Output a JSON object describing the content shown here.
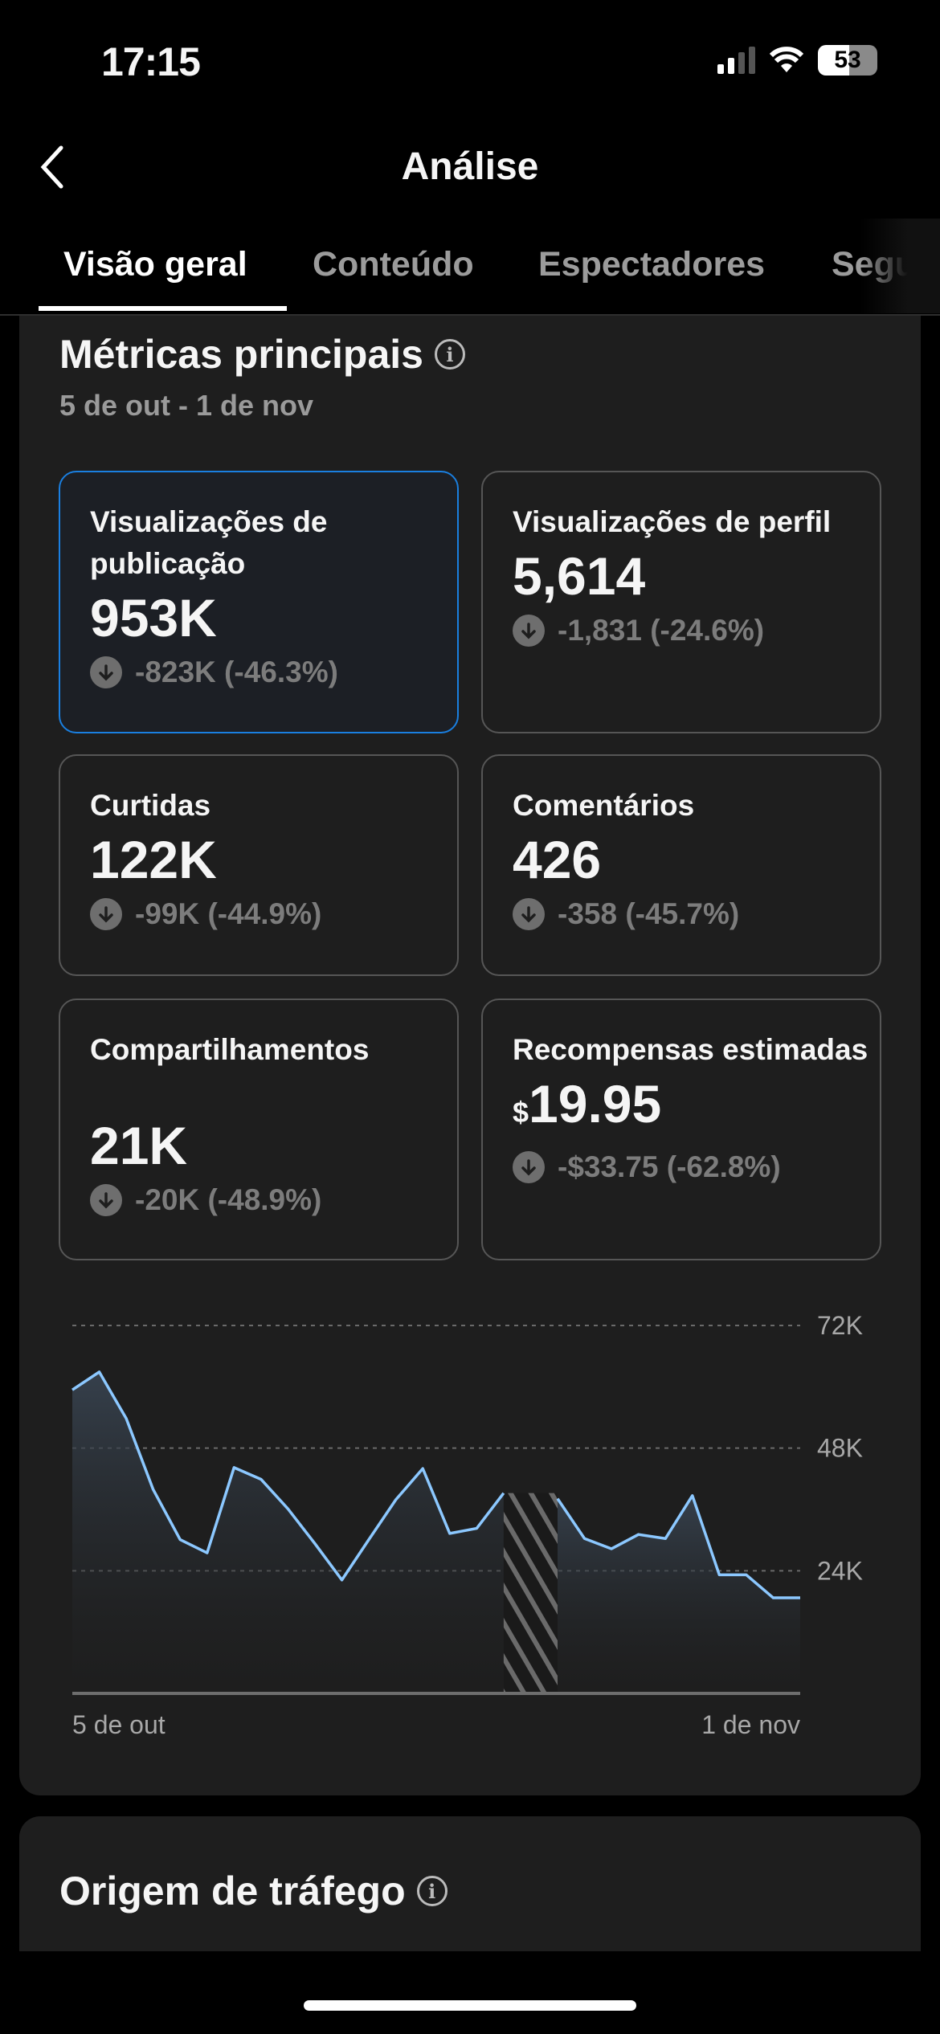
{
  "status_bar": {
    "time": "17:15",
    "battery": "53"
  },
  "header": {
    "title": "Análise",
    "back_icon": "chevron-left-icon"
  },
  "tabs": [
    {
      "label": "Visão geral",
      "active": true
    },
    {
      "label": "Conteúdo"
    },
    {
      "label": "Espectadores"
    },
    {
      "label": "Seguidores"
    }
  ],
  "metrics": {
    "title": "Métricas principais",
    "date_range": "5 de out - 1 de nov",
    "cards": [
      {
        "label": "Visualizações de publicação",
        "value": "953K",
        "change": "-823K (-46.3%)",
        "selected": true
      },
      {
        "label": "Visualizações de perfil",
        "value": "5,614",
        "change": "-1,831 (-24.6%)"
      },
      {
        "label": "Curtidas",
        "value": "122K",
        "change": "-99K (-44.9%)"
      },
      {
        "label": "Comentários",
        "value": "426",
        "change": "-358 (-45.7%)"
      },
      {
        "label": "Compartilhamentos",
        "value": "21K",
        "change": "-20K (-48.9%)"
      },
      {
        "label": "Recompensas estimadas",
        "currency": "$",
        "value": "19.95",
        "change": "-$33.75 (-62.8%)"
      }
    ]
  },
  "chart_data": {
    "type": "area",
    "title": "Visualizações de publicação",
    "x_start_label": "5 de out",
    "x_end_label": "1 de nov",
    "y_ticks": [
      "24K",
      "48K",
      "72K"
    ],
    "ylim": [
      0,
      72000
    ],
    "values": [
      59400,
      62900,
      53800,
      39900,
      30100,
      27500,
      44200,
      41900,
      36100,
      29300,
      22200,
      30100,
      37900,
      44000,
      31300,
      32300,
      39200,
      null,
      38100,
      30300,
      28300,
      31100,
      30300,
      38700,
      23200,
      23200,
      18700,
      18700
    ],
    "missing_data_index": 17,
    "line_color": "#8cc8ff",
    "grid": "dashed"
  },
  "traffic": {
    "title": "Origem de tráfego"
  }
}
